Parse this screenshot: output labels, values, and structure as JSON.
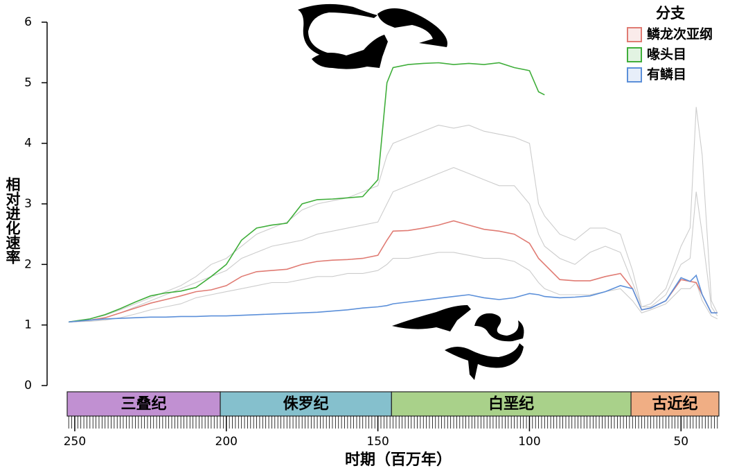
{
  "chart_data": {
    "type": "line",
    "x_label": "时期（百万年）",
    "y_label": "相对进化速率",
    "legend_title": "分支",
    "legend_position": "top-right",
    "xlim": [
      252.5,
      37.5
    ],
    "xticks": [
      250,
      200,
      150,
      100,
      50
    ],
    "xminor_step": 1,
    "ylim": [
      0,
      6
    ],
    "yticks": [
      0,
      1,
      2,
      3,
      4,
      5,
      6
    ],
    "x": [
      252,
      245,
      240,
      235,
      230,
      225,
      220,
      215,
      210,
      205,
      200,
      195,
      190,
      185,
      180,
      175,
      170,
      165,
      160,
      155,
      150,
      147,
      145,
      140,
      135,
      130,
      125,
      120,
      115,
      110,
      105,
      100,
      97,
      95,
      90,
      85,
      80,
      75,
      70,
      66,
      63,
      60,
      55,
      50,
      47,
      45,
      43,
      40,
      38
    ],
    "series": [
      {
        "color": "#cccccc",
        "values": [
          1.05,
          1.1,
          1.16,
          1.25,
          1.35,
          1.45,
          1.55,
          1.65,
          1.8,
          2.0,
          2.1,
          2.3,
          2.5,
          2.6,
          2.7,
          2.9,
          3.0,
          3.05,
          3.1,
          3.2,
          3.3,
          3.8,
          4.0,
          4.1,
          4.2,
          4.3,
          4.25,
          4.3,
          4.2,
          4.15,
          4.1,
          4.0,
          3.0,
          2.8,
          2.5,
          2.4,
          2.6,
          2.6,
          2.5,
          1.9,
          1.3,
          1.35,
          1.6,
          2.3,
          2.6,
          4.6,
          3.8,
          1.4,
          1.2
        ]
      },
      {
        "color": "#cccccc",
        "values": [
          1.05,
          1.08,
          1.12,
          1.2,
          1.3,
          1.4,
          1.5,
          1.6,
          1.7,
          1.8,
          1.9,
          2.1,
          2.2,
          2.3,
          2.35,
          2.4,
          2.5,
          2.55,
          2.6,
          2.65,
          2.7,
          3.0,
          3.2,
          3.3,
          3.4,
          3.5,
          3.6,
          3.5,
          3.4,
          3.3,
          3.3,
          3.0,
          2.5,
          2.3,
          2.1,
          2.0,
          2.2,
          2.3,
          2.2,
          1.7,
          1.3,
          1.3,
          1.5,
          2.0,
          2.1,
          3.2,
          2.5,
          1.3,
          1.15
        ]
      },
      {
        "color": "#cccccc",
        "values": [
          1.05,
          1.06,
          1.08,
          1.12,
          1.18,
          1.25,
          1.3,
          1.35,
          1.45,
          1.5,
          1.55,
          1.6,
          1.65,
          1.7,
          1.7,
          1.75,
          1.8,
          1.8,
          1.85,
          1.85,
          1.9,
          2.0,
          2.1,
          2.1,
          2.15,
          2.2,
          2.2,
          2.15,
          2.1,
          2.1,
          2.05,
          1.9,
          1.7,
          1.6,
          1.5,
          1.5,
          1.5,
          1.55,
          1.6,
          1.4,
          1.2,
          1.25,
          1.35,
          1.6,
          1.6,
          1.7,
          1.4,
          1.15,
          1.1
        ]
      },
      {
        "name": "鳞龙次亚纲",
        "color": "#e07b73",
        "values": [
          1.05,
          1.08,
          1.12,
          1.2,
          1.28,
          1.36,
          1.42,
          1.48,
          1.55,
          1.58,
          1.65,
          1.8,
          1.88,
          1.9,
          1.92,
          2.0,
          2.05,
          2.07,
          2.08,
          2.1,
          2.15,
          2.4,
          2.55,
          2.56,
          2.6,
          2.65,
          2.72,
          2.65,
          2.58,
          2.55,
          2.5,
          2.35,
          2.1,
          2.0,
          1.75,
          1.73,
          1.73,
          1.8,
          1.85,
          1.6,
          1.25,
          1.28,
          1.4,
          1.75,
          1.72,
          1.7,
          1.5,
          1.2,
          1.2
        ]
      },
      {
        "name": "喙头目",
        "color": "#3fae3a",
        "values": [
          1.05,
          1.1,
          1.17,
          1.27,
          1.38,
          1.48,
          1.53,
          1.56,
          1.62,
          1.8,
          2.0,
          2.4,
          2.6,
          2.65,
          2.68,
          3.0,
          3.07,
          3.08,
          3.1,
          3.12,
          3.4,
          5.0,
          5.25,
          5.3,
          5.32,
          5.33,
          5.3,
          5.32,
          5.3,
          5.33,
          5.25,
          5.2,
          4.85,
          4.8,
          null,
          null,
          null,
          null,
          null,
          null,
          null,
          null,
          null,
          null,
          null,
          null,
          null,
          null,
          null
        ]
      },
      {
        "name": "有鳞目",
        "color": "#5b8fd9",
        "values": [
          1.05,
          1.08,
          1.1,
          1.11,
          1.12,
          1.13,
          1.13,
          1.14,
          1.14,
          1.15,
          1.15,
          1.16,
          1.17,
          1.18,
          1.19,
          1.2,
          1.21,
          1.23,
          1.25,
          1.28,
          1.3,
          1.32,
          1.35,
          1.38,
          1.41,
          1.44,
          1.47,
          1.5,
          1.45,
          1.42,
          1.45,
          1.52,
          1.5,
          1.47,
          1.45,
          1.46,
          1.48,
          1.55,
          1.65,
          1.6,
          1.25,
          1.28,
          1.4,
          1.78,
          1.72,
          1.82,
          1.5,
          1.2,
          1.2
        ]
      }
    ],
    "periods": [
      {
        "label": "三叠纪",
        "start": 252.5,
        "end": 202,
        "color": "#c190d2"
      },
      {
        "label": "侏罗纪",
        "start": 202,
        "end": 145.5,
        "color": "#85c0cd"
      },
      {
        "label": "白垩纪",
        "start": 145.5,
        "end": 66.5,
        "color": "#a9d18a"
      },
      {
        "label": "古近纪",
        "start": 66.5,
        "end": 37.5,
        "color": "#f0ae84"
      }
    ]
  }
}
